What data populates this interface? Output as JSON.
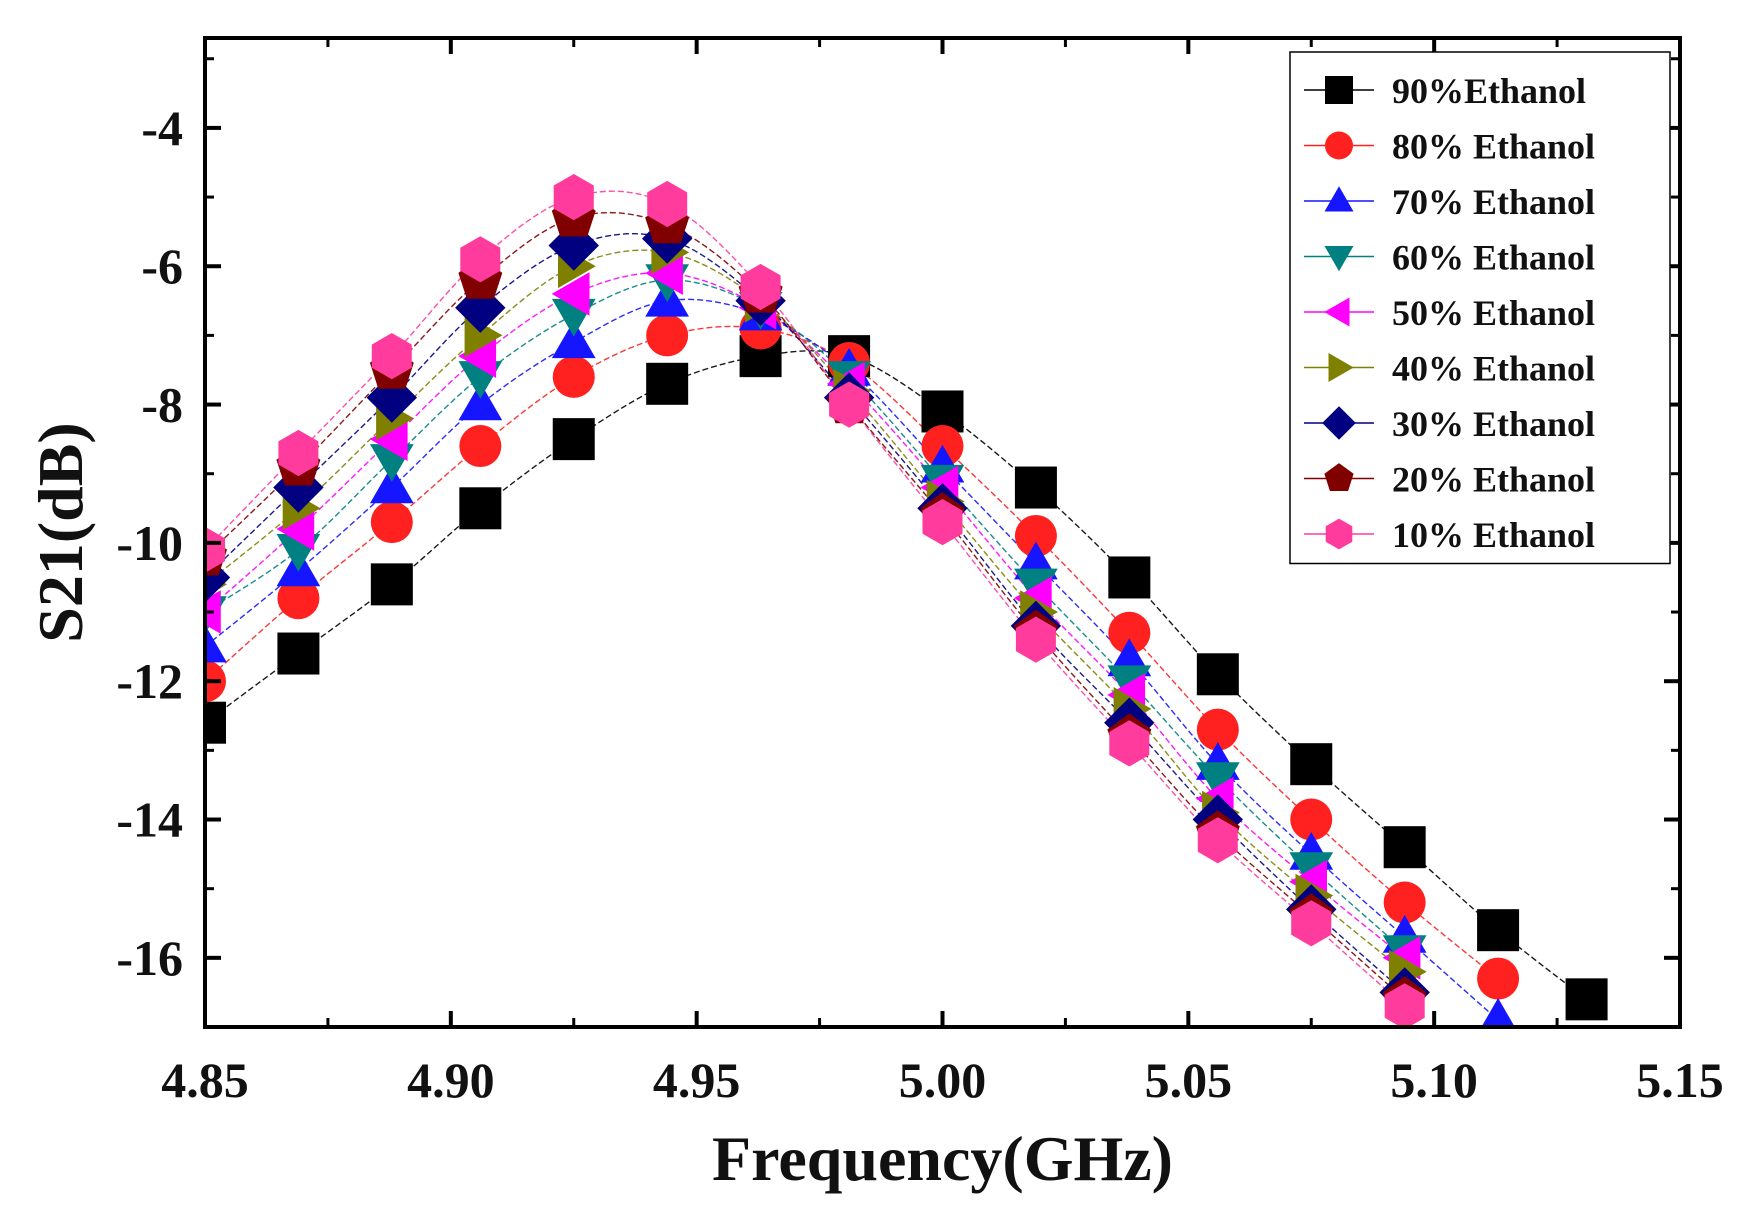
{
  "chart_data": {
    "type": "scatter",
    "title": "",
    "xlabel": "Frequency(GHz)",
    "ylabel": "S21(dB)",
    "xlim": [
      4.85,
      5.15
    ],
    "ylim": [
      -17,
      -2.7
    ],
    "x_ticks": [
      4.85,
      4.9,
      4.95,
      5.0,
      5.05,
      5.1,
      5.15
    ],
    "x_tick_labels": [
      "4.85",
      "4.90",
      "4.95",
      "5.00",
      "5.05",
      "5.10",
      "5.15"
    ],
    "y_ticks": [
      -16,
      -14,
      -12,
      -10,
      -8,
      -6,
      -4
    ],
    "y_tick_labels": [
      "-16",
      "-14",
      "-12",
      "-10",
      "-8",
      "-6",
      "-4"
    ],
    "grid": false,
    "legend_position": "top-right",
    "x": [
      4.85,
      4.869,
      4.888,
      4.906,
      4.925,
      4.944,
      4.963,
      4.981,
      5.0,
      5.019,
      5.038,
      5.056,
      5.075,
      5.094,
      5.113,
      5.131
    ],
    "series": [
      {
        "name": "90%Ethanol",
        "marker": "square",
        "color": "#000000",
        "values": [
          -12.6,
          -11.6,
          -10.6,
          -9.5,
          -8.5,
          -7.7,
          -7.3,
          -7.3,
          -8.1,
          -9.2,
          -10.5,
          -11.9,
          -13.2,
          -14.4,
          -15.6,
          -16.6
        ]
      },
      {
        "name": "80% Ethanol",
        "marker": "circle",
        "color": "#ff2020",
        "values": [
          -12.0,
          -10.8,
          -9.7,
          -8.6,
          -7.6,
          -7.0,
          -6.9,
          -7.4,
          -8.6,
          -9.9,
          -11.3,
          -12.7,
          -14.0,
          -15.2,
          -16.3,
          null
        ]
      },
      {
        "name": "70% Ethanol",
        "marker": "triangle-up",
        "color": "#1515ff",
        "values": [
          -11.5,
          -10.4,
          -9.2,
          -8.0,
          -7.1,
          -6.5,
          -6.7,
          -7.5,
          -8.9,
          -10.3,
          -11.7,
          -13.2,
          -14.5,
          -15.7,
          -16.9,
          null
        ]
      },
      {
        "name": "60% Ethanol",
        "marker": "triangle-down",
        "color": "#008080",
        "values": [
          -11.0,
          -10.1,
          -8.8,
          -7.6,
          -6.7,
          -6.2,
          -6.6,
          -7.6,
          -9.1,
          -10.6,
          -12.0,
          -13.4,
          -14.7,
          -15.9,
          null,
          null
        ]
      },
      {
        "name": "50% Ethanol",
        "marker": "triangle-left",
        "color": "#ff00ff",
        "values": [
          -11.0,
          -9.8,
          -8.5,
          -7.3,
          -6.4,
          -6.1,
          -6.6,
          -7.7,
          -9.2,
          -10.8,
          -12.2,
          -13.7,
          -14.9,
          -16.0,
          null,
          null
        ]
      },
      {
        "name": "40% Ethanol",
        "marker": "triangle-right",
        "color": "#808000",
        "values": [
          -10.6,
          -9.5,
          -8.2,
          -7.0,
          -6.0,
          -5.8,
          -6.5,
          -7.8,
          -9.4,
          -11.0,
          -12.4,
          -13.9,
          -15.1,
          -16.2,
          null,
          null
        ]
      },
      {
        "name": "30% Ethanol",
        "marker": "diamond",
        "color": "#000080",
        "values": [
          -10.5,
          -9.2,
          -7.9,
          -6.6,
          -5.7,
          -5.6,
          -6.5,
          -7.9,
          -9.5,
          -11.2,
          -12.6,
          -14.0,
          -15.3,
          -16.5,
          null,
          null
        ]
      },
      {
        "name": "20% Ethanol",
        "marker": "pentagon",
        "color": "#800000",
        "values": [
          -10.2,
          -8.9,
          -7.5,
          -6.2,
          -5.3,
          -5.4,
          -6.4,
          -8.0,
          -9.6,
          -11.3,
          -12.8,
          -14.2,
          -15.4,
          -16.6,
          null,
          null
        ]
      },
      {
        "name": "10% Ethanol",
        "marker": "hexagon",
        "color": "#ff3b9d",
        "values": [
          -10.1,
          -8.7,
          -7.3,
          -5.9,
          -5.0,
          -5.1,
          -6.3,
          -8.0,
          -9.7,
          -11.4,
          -12.9,
          -14.3,
          -15.5,
          -16.7,
          null,
          null
        ]
      }
    ]
  }
}
